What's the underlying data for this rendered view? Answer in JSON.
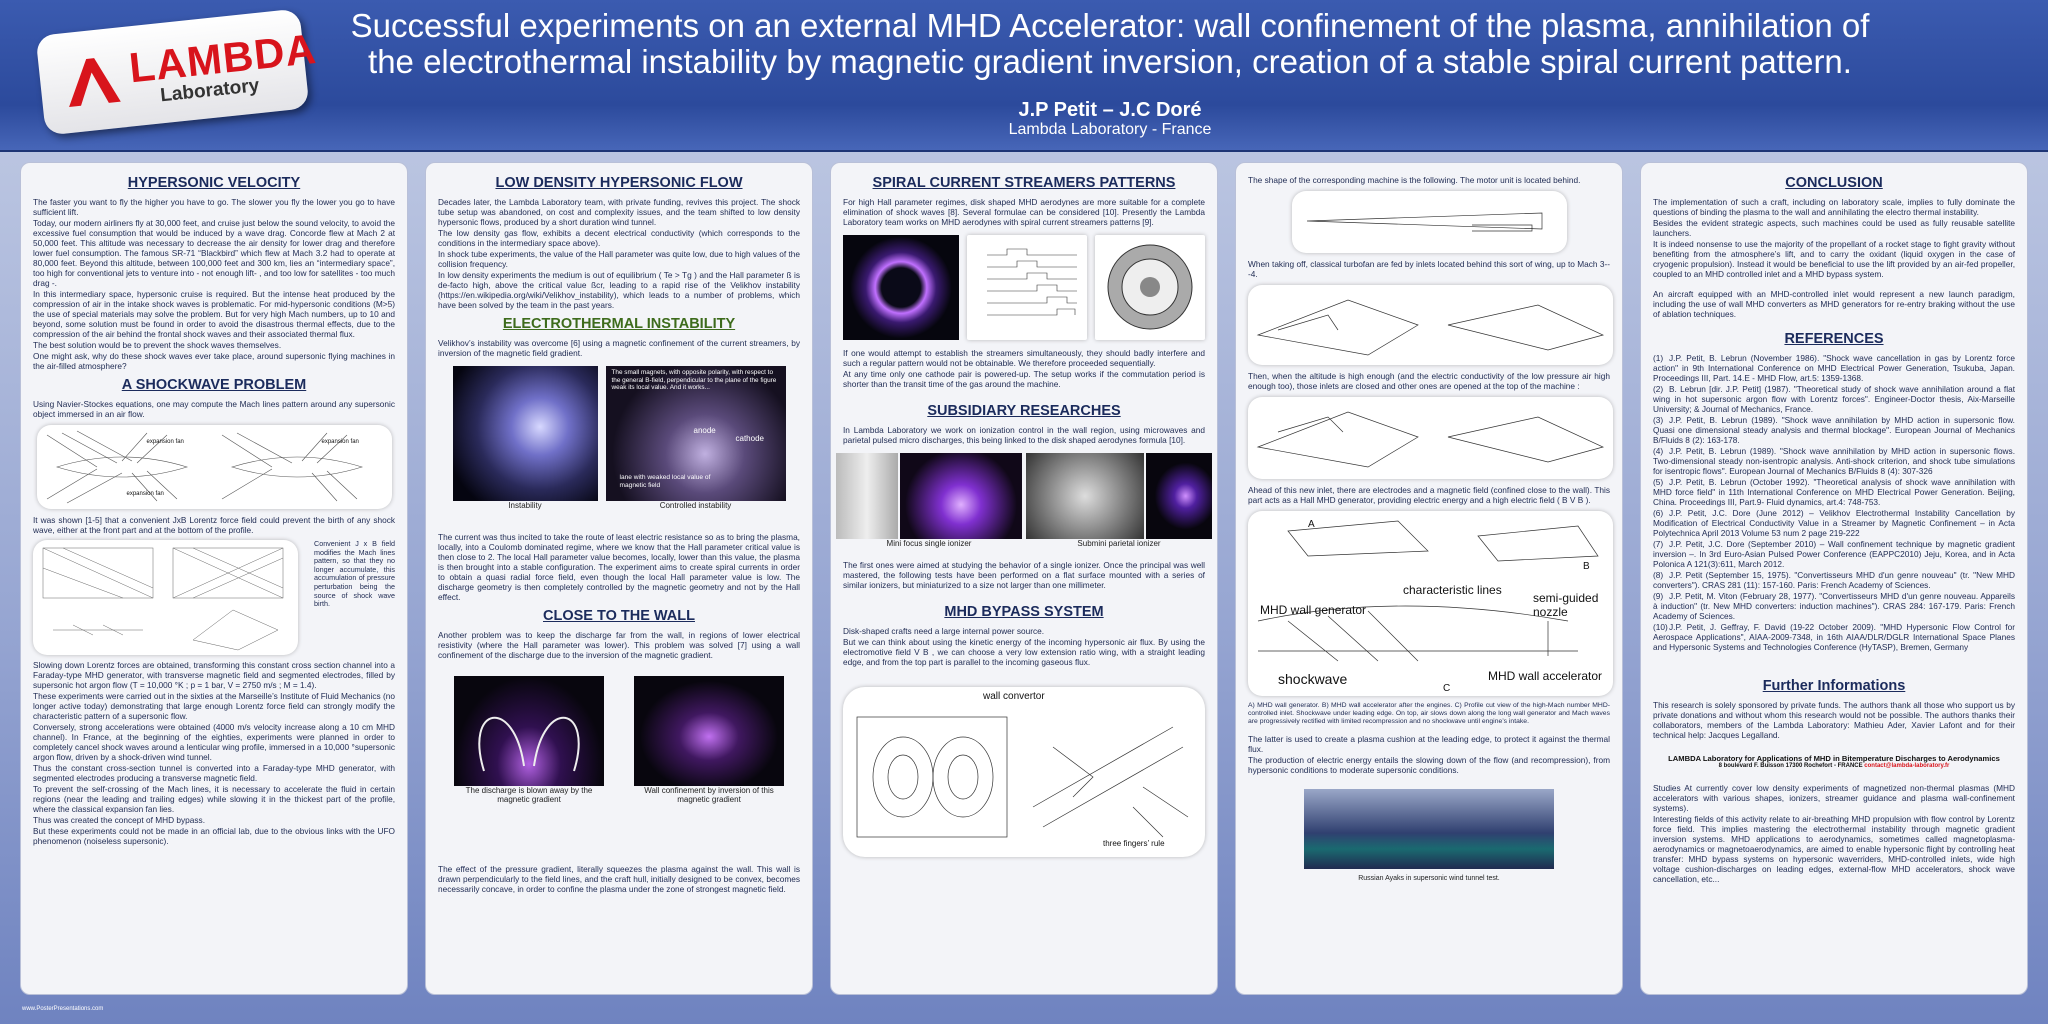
{
  "header": {
    "logo_name": "LAMBDA",
    "logo_sub": "Laboratory",
    "title": "Successful experiments on an external MHD Accelerator: wall confinement of the plasma, annihilation of the electrothermal instability by magnetic gradient inversion, creation of a stable spiral current pattern.",
    "authors": "J.P Petit – J.C Doré",
    "affiliation": "Lambda Laboratory - France"
  },
  "hypersonic_velocity": {
    "heading": "HYPERSONIC VELOCITY",
    "paragraphs": [
      "The faster you want to fly the higher you have to go. The slower you fly the lower you go to have sufficient lift.",
      "Today, our modern airliners fly at 30,000 feet, and cruise just below the sound velocity, to avoid the excessive fuel consumption that would be induced by a wave drag. Concorde flew at Mach 2 at 50,000 feet. This altitude was necessary to decrease the air density for lower drag and therefore lower fuel consumption. The famous SR-71 “Blackbird” which flew at Mach 3.2 had to operate at 80,000 feet. Beyond this altitude, between 100,000 feet and 300 km, lies an “intermediary space”, too high for conventional jets to venture into - not enough lift- , and too low for satellites - too much drag -.",
      "In this intermediary space, hypersonic cruise is required. But the intense heat produced by the compression of air in the intake shock waves is problematic. For mid-hypersonic conditions (M>5) the use of special materials may solve the problem. But for very high Mach numbers, up to 10 and beyond, some solution must be found in order to avoid the disastrous thermal effects, due to the compression of the air behind the frontal shock waves and their associated thermal flux.",
      "The best solution would be to prevent the shock waves themselves.",
      "One might ask, why do these shock waves ever take place, around supersonic flying machines in the air-filled atmosphere?"
    ]
  },
  "shockwave_problem": {
    "heading": "A SHOCKWAVE PROBLEM",
    "intro": "Using Navier-Stockes equations, one may compute the Mach lines pattern around any supersonic object immersed in an air flow.",
    "figure_labels": [
      "expansion fan",
      "expansion fan",
      "expansion fan"
    ],
    "middle": "It was shown [1-5] that a convenient JxB Lorentz force field could prevent the birth of any shock wave, either at the front part and at the bottom of the profile.",
    "side_note": "Convenient J x B field modifies the Mach lines pattern, so that they no longer accumulate, this accumulation of pressure perturbation being the source of shock wave birth.",
    "paragraphs": [
      "Slowing down Lorentz forces are obtained, transforming this constant cross section channel into a Faraday-type MHD generator, with transverse magnetic field and segmented electrodes, filled by supersonic hot argon flow (T = 10,000 °K ; p = 1 bar, V = 2750 m/s ; M = 1.4).",
      "These experiments were carried out in the sixties at the Marseille’s Institute of Fluid Mechanics (no longer active today) demonstrating that large enough Lorentz force field can strongly modify the characteristic pattern of a supersonic flow.",
      "Conversely, strong accelerations were obtained (4000 m/s velocity increase along a 10 cm MHD channel). In France, at the beginning of the eighties, experiments were planned in order to completely cancel shock waves around a lenticular wing profile, immersed in a 10,000 °supersonic argon flow, driven by a shock-driven wind tunnel.",
      "Thus the constant cross-section tunnel is converted into a Faraday-type MHD generator, with segmented electrodes producing a transverse magnetic field.",
      "To prevent the self-crossing of the Mach lines, it is necessary to accelerate the fluid in certain regions (near the leading and trailing edges) while slowing it in the thickest part of the profile, where the classical expansion fan lies.",
      "Thus was created the concept of MHD bypass.",
      "But these experiments could not be made in an official lab, due to the obvious links with the UFO phenomenon (noiseless supersonic)."
    ]
  },
  "low_density": {
    "heading": "LOW DENSITY HYPERSONIC FLOW",
    "paragraphs": [
      "Decades later, the Lambda Laboratory team, with private funding, revives this project. The shock tube setup was abandoned, on cost and complexity issues, and the team shifted to low density hypersonic flows, produced by a short duration wind tunnel.",
      "The low density gas flow, exhibits a decent electrical conductivity (which corresponds to the conditions in the intermediary space above).",
      "In shock tube experiments, the value of the Hall parameter was quite low, due to high values of the collision frequency.",
      "In low density experiments the medium is out of equilibrium ( Te > Tg ) and the Hall parameter ß is de-facto high, above the critical value ßcr, leading to a rapid rise of the Velikhov instability (https://en.wikipedia.org/wiki/Velikhov_instability), which leads to a number of problems, which have been solved by the team in the past years."
    ]
  },
  "electrothermal": {
    "heading": "ELECTROTHERMAL INSTABILITY",
    "intro": "Velikhov’s instability was overcome [6] using a magnetic confinement of the current streamers, by inversion of the magnetic field gradient.",
    "photo_text": "The small magnets, with opposite polarity, with respect to the general B-field, perpendicular to the plane of the figure weak its local value. And it works...",
    "photo_labels": [
      "anode",
      "cathode",
      "lane with weaked local value of magnetic field"
    ],
    "captions": [
      "Instability",
      "Controlled instability"
    ],
    "paragraph": "The current was thus incited to take the route of least electric resistance so as to bring the plasma, locally, into a Coulomb dominated regime, where we know that the Hall parameter critical value is then close to 2. The local Hall parameter value becomes, locally, lower than this value, the plasma is then brought into a stable configuration. The experiment aims to create spiral currents in order to obtain a quasi radial force field, even though the local Hall parameter value is low. The discharge geometry is then completely controlled by the magnetic geometry and not by the Hall effect."
  },
  "close_to_wall": {
    "heading": "CLOSE TO THE WALL",
    "intro": "Another problem was to keep the discharge far from the wall, in regions of lower electrical resistivity (where the Hall parameter was lower). This problem was solved [7] using a wall confinement of the discharge due to the inversion of the magnetic gradient.",
    "captions": [
      "The discharge is blown away by the magnetic gradient",
      "Wall confinement by inversion of this magnetic gradient"
    ],
    "paragraph": "The effect of the pressure gradient, literally squeezes the plasma against the wall. This wall is drawn perpendicularly to the field lines, and the craft hull, initially designed to be convex, becomes necessarily concave, in order to confine the plasma under the zone of strongest magnetic field."
  },
  "spiral": {
    "heading": "SPIRAL CURRENT STREAMERS PATTERNS",
    "intro": "For high Hall parameter regimes, disk shaped MHD aerodynes are more suitable for a complete elimination of shock waves [8]. Several formulae can be considered [10]. Presently the Lambda Laboratory team works on MHD aerodynes with spiral current streamers patterns [9].",
    "paragraphs": [
      "If one would attempt to establish the streamers simultaneously, they should badly interfere and such a regular pattern would not be obtainable. We therefore proceeded sequentially.",
      "At any time only one cathode pair is powered-up. The setup works if the commutation period is shorter than the transit time of the gas around the machine."
    ]
  },
  "subsidiary": {
    "heading": "SUBSIDIARY RESEARCHES",
    "intro": "In Lambda Laboratory we work on ionization control in the wall region, using microwaves and parietal pulsed micro discharges, this being linked to the disk shaped aerodynes formula [10].",
    "captions": [
      "Mini focus single ionizer",
      "Submini parietal ionizer"
    ],
    "paragraph": "The first ones were aimed at studying the behavior of a single ionizer. Once the principal was well mastered, the following tests have been performed on a flat surface mounted with a series of similar ionizers, but miniaturized to a size not larger than one millimeter."
  },
  "bypass": {
    "heading": "MHD BYPASS SYSTEM",
    "paragraphs": [
      "Disk-shaped crafts need a large internal power source.",
      "But we can think about using the kinetic energy of the incoming hypersonic air flux. By using the electromotive field V B , we can choose a very low extension ratio wing, with a straight leading edge, and from the top part is parallel to the incoming gaseous flux."
    ],
    "figure_labels": [
      "wall convertor",
      "three fingers’ rule"
    ]
  },
  "machine": {
    "p1": "The shape of the corresponding machine is the following. The motor unit is located behind.",
    "p2": "When taking off, classical turbofan are fed by inlets located behind this sort of wing, up to Mach 3---4.",
    "p3": "Then, when the altitude is high enough (and the electric conductivity of the low pressure air high enough too), those inlets are closed and other ones are opened at the top of the machine :",
    "p4": "Ahead of this new inlet, there are electrodes and a magnetic field (confined close to the wall). This part acts as a Hall MHD generator, providing electric energy and a high electric field ( B V B ).",
    "figure_labels": [
      "A",
      "B",
      "characteristic lines",
      "semi-guided nozzle",
      "MHD wall generator",
      "shockwave",
      "C",
      "MHD wall accelerator"
    ],
    "figure_caption": "A) MHD wall generator. B) MHD wall accelerator after the engines. C) Profile cut view of the high-Mach number MHD-controlled inlet. Shockwave under leading edge. On top, air slows down along the long wall generator and Mach waves are progressively rectified with limited recompression and no shockwave until engine’s intake.",
    "p5": "The latter is used to create a plasma cushion at the leading edge, to protect it against the thermal flux.",
    "p6": "The production of electric energy entails the slowing down of the flow (and recompression), from hypersonic conditions to moderate supersonic conditions.",
    "last_caption": "Russian Ayaks in supersonic wind tunnel test."
  },
  "conclusion": {
    "heading": "CONCLUSION",
    "paragraphs": [
      "The implementation of such a craft, including on laboratory scale, implies to fully dominate the questions of binding the plasma to the wall and annihilating the electro thermal instability.",
      "Besides the evident strategic aspects, such machines could be used as fully reusable satellite launchers.",
      "It is indeed nonsense to use the majority of the propellant of a rocket stage to fight gravity without benefiting from the atmosphere’s lift, and to carry the oxidant (liquid oxygen in the case of cryogenic propulsion). Instead it would be beneficial to use the lift provided by an air-fed propeller, coupled to an MHD controlled inlet and a MHD bypass system.",
      "An aircraft equipped with an MHD-controlled inlet would represent a new launch paradigm, including the use of wall MHD converters as MHD generators for re-entry braking without the use of ablation techniques."
    ]
  },
  "references": {
    "heading": "REFERENCES",
    "items": [
      {
        "number": "(1)",
        "text": "J.P. Petit, B. Lebrun (November 1986). \"Shock wave cancellation in gas by Lorentz force action\" in 9th International Conference on MHD Electrical Power Generation, Tsukuba, Japan. Proceedings III, Part. 14.E - MHD Flow, art.5: 1359-1368."
      },
      {
        "number": "(2)",
        "text": "B. Lebrun [dir. J.P. Petit] (1987). \"Theoretical study of shock wave annihilation around a flat wing in hot supersonic argon flow with Lorentz forces\". Engineer-Doctor thesis, Aix-Marseille University; & Journal of Mechanics, France."
      },
      {
        "number": "(3)",
        "text": "J.P. Petit, B. Lebrun (1989). \"Shock wave annihilation by MHD action in supersonic flow. Quasi one dimensional steady analysis and thermal blockage\". European Journal of Mechanics B/Fluids 8 (2): 163-178."
      },
      {
        "number": "(4)",
        "text": "J.P. Petit, B. Lebrun (1989). \"Shock wave annihilation by MHD action in supersonic flows. Two-dimensional steady non-isentropic analysis. Anti-shock criterion, and shock tube simulations for isentropic flows\". European Journal of Mechanics B/Fluids 8 (4): 307-326"
      },
      {
        "number": "(5)",
        "text": "J.P. Petit, B. Lebrun (October 1992). \"Theoretical analysis of shock wave annihilation with MHD force field\" in 11th International Conference on MHD Electrical Power Generation. Beijing, China. Proceedings III, Part.9- Fluid dynamics, art.4: 748-753."
      },
      {
        "number": "(6)",
        "text": "J.P. Petit, J.C. Dore (June 2012) – Velikhov Electrothermal Instability Cancellation by Modification of Electrical Conductivity Value in a Streamer by Magnetic Confinement – in Acta Polytechnica April 2013 Volume 53 num 2 page 219-222"
      },
      {
        "number": "(7)",
        "text": "J.P. Petit, J.C. Dore (September 2010) – Wall confinement technique by magnetic gradient inversion –. In 3rd Euro-Asian Pulsed Power Conference (EAPPC2010) Jeju, Korea, and in Acta Polonica A 121(3):611, March 2012."
      },
      {
        "number": "(8)",
        "text": "J.P. Petit (September 15, 1975). \"Convertisseurs MHD d'un genre nouveau\" (tr. \"New MHD converters\"). CRAS 281 (11): 157-160. Paris: French Academy of Sciences."
      },
      {
        "number": "(9)",
        "text": "J.P. Petit, M. Viton (February 28, 1977). \"Convertisseurs MHD d'un genre nouveau. Appareils à induction\" (tr. New MHD converters: induction machines\"). CRAS 284: 167-179. Paris: French Academy of Sciences."
      },
      {
        "number": "(10)",
        "text": "J.P. Petit, J. Geffray, F. David (19-22 October 2009). \"MHD Hypersonic Flow Control for Aerospace Applications\", AIAA-2009-7348, in 16th AIAA/DLR/DGLR International Space Planes and Hypersonic Systems and Technologies Conference (HyTASP), Bremen, Germany"
      }
    ]
  },
  "further": {
    "heading": "Further Informations",
    "thanks": "This research is solely sponsored by private funds. The authors thank all those who support us by private donations and without whom this research would not be possible. The authors thanks their collaborators, members of the Lambda Laboratory: Mathieu Ader, Xavier Lafont and for their technical help: Jacques Legalland.",
    "lab_name": "LAMBDA Laboratory for Applications of MHD in Bitemperature Discharges to Aerodynamics",
    "address": "8 boulevard F. Buisson 17300 Rochefort - FRANCE",
    "email": "contact@lambda-laboratory.fr",
    "paragraphs": [
      "Studies At currently cover low density experiments of magnetized non-thermal plasmas (MHD accelerators with various shapes, ionizers, streamer guidance and plasma wall-confinement systems).",
      "Interesting fields of this activity relate to air-breathing MHD propulsion with flow control by Lorentz force field. This implies mastering the electrothermal instability through magnetic gradient inversion systems. MHD applications to aerodynamics, sometimes called magnetoplasma-aerodynamics or magnetoaerodynamics, are aimed to enable hypersonic flight by controlling heat transfer: MHD bypass systems on hypersonic waverriders, MHD-controlled inlets, wide high voltage cushion-discharges on leading edges, external-flow MHD accelerators, shock wave cancellation, etc..."
    ]
  },
  "footer": "www.PosterPresentations.com"
}
